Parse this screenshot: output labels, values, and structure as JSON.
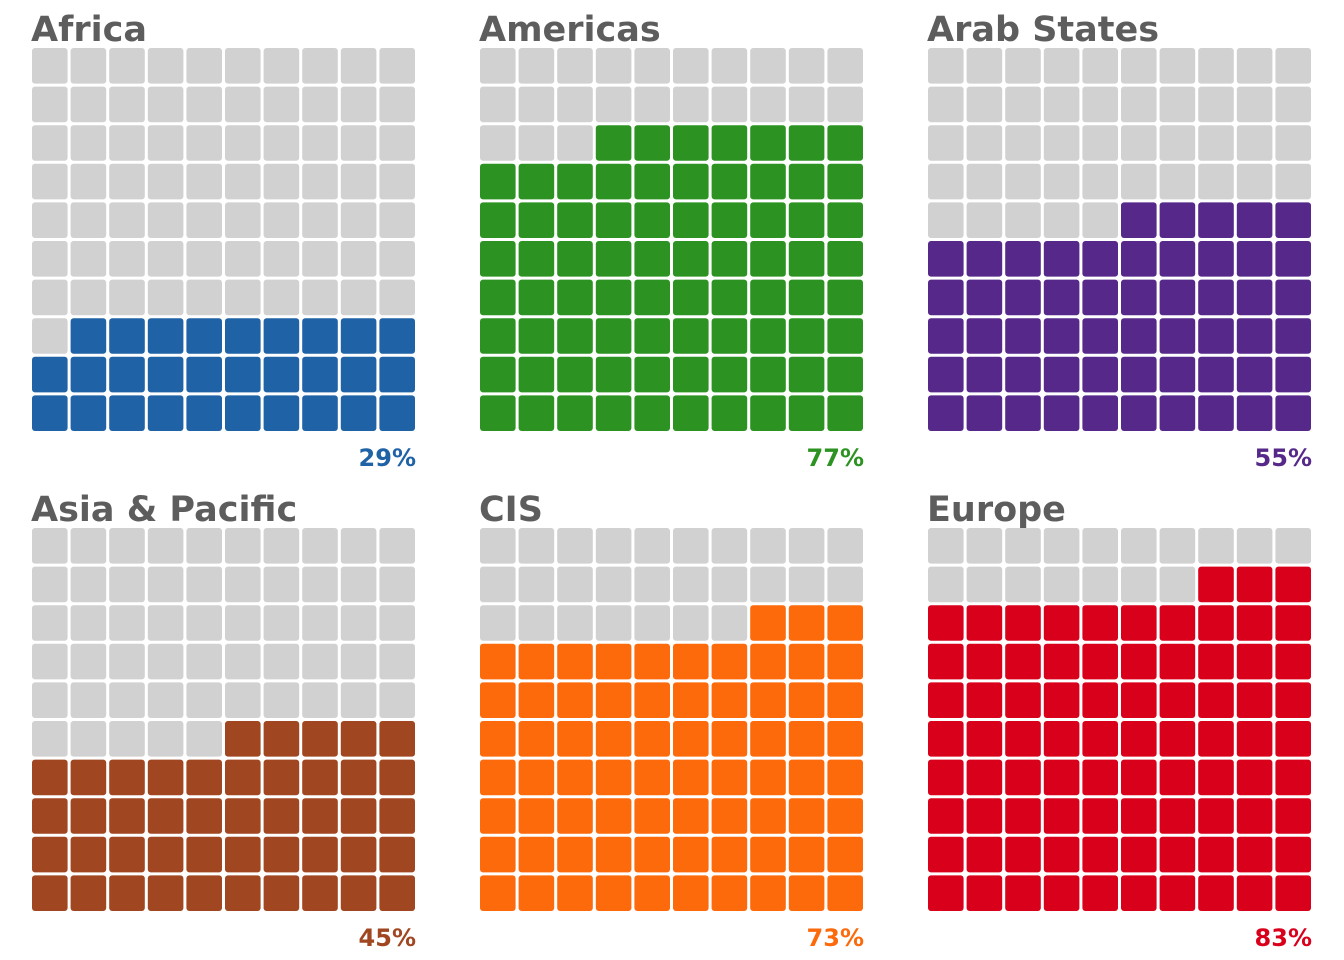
{
  "chart_data": {
    "type": "waffle",
    "grid": {
      "rows": 10,
      "cols": 10
    },
    "empty_color": "#d1d1d1",
    "title_color": "#5d5d5d",
    "panels": [
      {
        "category": "Africa",
        "value": 29,
        "label": "29%",
        "color": "#1f62a6"
      },
      {
        "category": "Americas",
        "value": 77,
        "label": "77%",
        "color": "#2c9322"
      },
      {
        "category": "Arab States",
        "value": 55,
        "label": "55%",
        "color": "#55288a"
      },
      {
        "category": "Asia & Pacific",
        "value": 45,
        "label": "45%",
        "color": "#a04620"
      },
      {
        "category": "CIS",
        "value": 73,
        "label": "73%",
        "color": "#fc6a0c"
      },
      {
        "category": "Europe",
        "value": 83,
        "label": "83%",
        "color": "#d9001b"
      }
    ]
  }
}
